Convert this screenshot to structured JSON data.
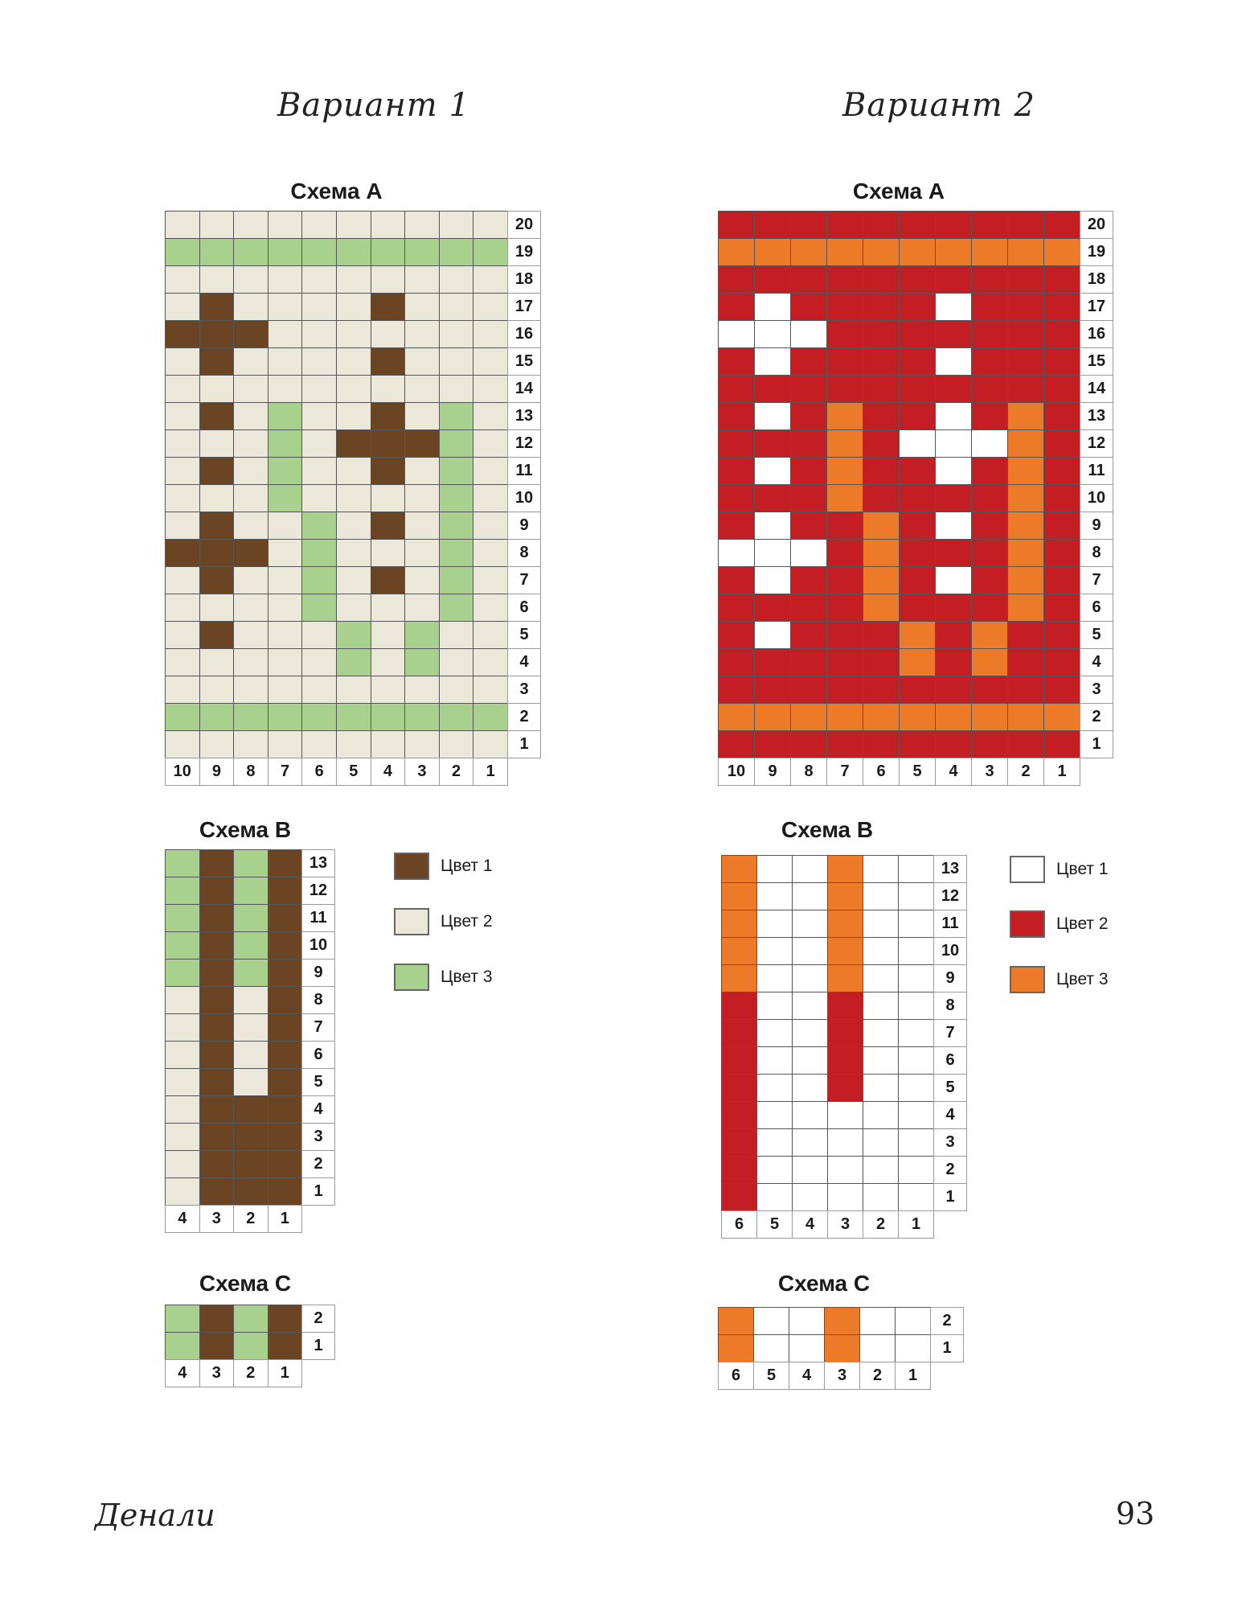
{
  "variants": [
    {
      "title": "Вариант 1",
      "palette": {
        "1": "#6b4423",
        "2": "#ebe8da",
        "3": "#a8d18d"
      },
      "legend": [
        {
          "key": "1",
          "label": "Цвет 1"
        },
        {
          "key": "2",
          "label": "Цвет 2"
        },
        {
          "key": "3",
          "label": "Цвет 3"
        }
      ],
      "schemes": [
        {
          "id": "A",
          "title": "Схема А",
          "rows": [
            "2222222222",
            "3333333333",
            "2222222222",
            "2122221222",
            "1112222222",
            "2122221222",
            "2222222222",
            "2123221232",
            "2223211132",
            "2123221232",
            "2223222232",
            "2122321232",
            "1112322232",
            "2122321232",
            "2222322232",
            "2122232322",
            "2222232322",
            "2222222222",
            "3333333333",
            "2222222222"
          ],
          "row_numbers": [
            "20",
            "19",
            "18",
            "17",
            "16",
            "15",
            "14",
            "13",
            "12",
            "11",
            "10",
            "9",
            "8",
            "7",
            "6",
            "5",
            "4",
            "3",
            "2",
            "1"
          ],
          "col_numbers": [
            "10",
            "9",
            "8",
            "7",
            "6",
            "5",
            "4",
            "3",
            "2",
            "1"
          ]
        },
        {
          "id": "B",
          "title": "Схема В",
          "rows": [
            "3131",
            "3131",
            "3131",
            "3131",
            "3131",
            "2121",
            "2121",
            "2121",
            "2121",
            "2111",
            "2111",
            "2111",
            "2111"
          ],
          "row_numbers": [
            "13",
            "12",
            "11",
            "10",
            "9",
            "8",
            "7",
            "6",
            "5",
            "4",
            "3",
            "2",
            "1"
          ],
          "col_numbers": [
            "4",
            "3",
            "2",
            "1"
          ]
        },
        {
          "id": "C",
          "title": "Схема С",
          "rows": [
            "3131",
            "3131"
          ],
          "row_numbers": [
            "2",
            "1"
          ],
          "col_numbers": [
            "4",
            "3",
            "2",
            "1"
          ]
        }
      ]
    },
    {
      "title": "Вариант 2",
      "palette": {
        "1": "#ffffff",
        "2": "#c41e24",
        "3": "#ec7a28"
      },
      "legend": [
        {
          "key": "1",
          "label": "Цвет 1"
        },
        {
          "key": "2",
          "label": "Цвет 2"
        },
        {
          "key": "3",
          "label": "Цвет 3"
        }
      ],
      "schemes": [
        {
          "id": "A",
          "title": "Схема А",
          "rows": [
            "2222222222",
            "3333333333",
            "2222222222",
            "2122221222",
            "1112222222",
            "2122221222",
            "2222222222",
            "2123221232",
            "2223211132",
            "2123221232",
            "2223222232",
            "2122321232",
            "1112322232",
            "2122321232",
            "2222322232",
            "2122232322",
            "2222232322",
            "2222222222",
            "3333333333",
            "2222222222"
          ],
          "row_numbers": [
            "20",
            "19",
            "18",
            "17",
            "16",
            "15",
            "14",
            "13",
            "12",
            "11",
            "10",
            "9",
            "8",
            "7",
            "6",
            "5",
            "4",
            "3",
            "2",
            "1"
          ],
          "col_numbers": [
            "10",
            "9",
            "8",
            "7",
            "6",
            "5",
            "4",
            "3",
            "2",
            "1"
          ]
        },
        {
          "id": "B",
          "title": "Схема В",
          "rows": [
            "311311",
            "311311",
            "311311",
            "311311",
            "311311",
            "211211",
            "211211",
            "211211",
            "211211",
            "211111",
            "211111",
            "211111",
            "211111"
          ],
          "row_numbers": [
            "13",
            "12",
            "11",
            "10",
            "9",
            "8",
            "7",
            "6",
            "5",
            "4",
            "3",
            "2",
            "1"
          ],
          "col_numbers": [
            "6",
            "5",
            "4",
            "3",
            "2",
            "1"
          ]
        },
        {
          "id": "C",
          "title": "Схема С",
          "rows": [
            "311311",
            "311311"
          ],
          "row_numbers": [
            "2",
            "1"
          ],
          "col_numbers": [
            "6",
            "5",
            "4",
            "3",
            "2",
            "1"
          ]
        }
      ]
    }
  ],
  "footer": {
    "title": "Денали",
    "page_number": "93"
  }
}
